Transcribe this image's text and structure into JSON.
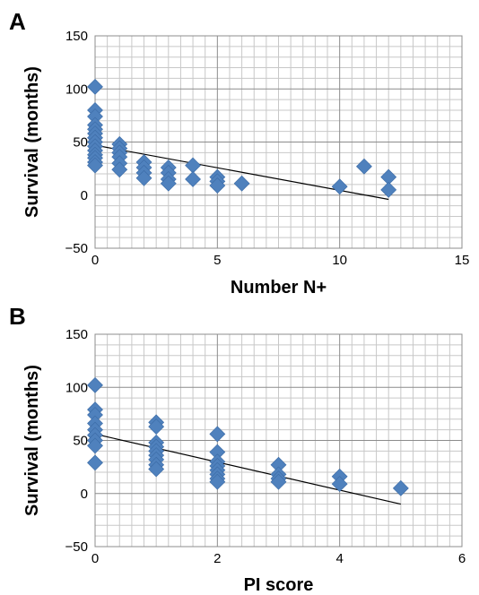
{
  "chart_data": [
    {
      "type": "scatter",
      "panel_label": "A",
      "xlabel": "Number N+",
      "ylabel": "Survival (months)",
      "xlim": [
        0,
        15
      ],
      "ylim": [
        -50,
        150
      ],
      "x_ticks": [
        0,
        5,
        10,
        15
      ],
      "y_ticks": [
        -50,
        0,
        50,
        100,
        150
      ],
      "x_minor_step": 0.5,
      "y_minor_step": 10,
      "grid": true,
      "legend": "none",
      "marker": "diamond",
      "marker_color": "#4f81bd",
      "points": [
        {
          "x": 0,
          "y": 102
        },
        {
          "x": 0,
          "y": 80
        },
        {
          "x": 0,
          "y": 74
        },
        {
          "x": 0,
          "y": 66
        },
        {
          "x": 0,
          "y": 62
        },
        {
          "x": 0,
          "y": 58
        },
        {
          "x": 0,
          "y": 54
        },
        {
          "x": 0,
          "y": 50
        },
        {
          "x": 0,
          "y": 46
        },
        {
          "x": 0,
          "y": 42
        },
        {
          "x": 0,
          "y": 38
        },
        {
          "x": 0,
          "y": 35
        },
        {
          "x": 0,
          "y": 31
        },
        {
          "x": 0,
          "y": 28
        },
        {
          "x": 1,
          "y": 48
        },
        {
          "x": 1,
          "y": 44
        },
        {
          "x": 1,
          "y": 40
        },
        {
          "x": 1,
          "y": 36
        },
        {
          "x": 1,
          "y": 30
        },
        {
          "x": 1,
          "y": 24
        },
        {
          "x": 2,
          "y": 31
        },
        {
          "x": 2,
          "y": 26
        },
        {
          "x": 2,
          "y": 21
        },
        {
          "x": 2,
          "y": 16
        },
        {
          "x": 3,
          "y": 26
        },
        {
          "x": 3,
          "y": 21
        },
        {
          "x": 3,
          "y": 15
        },
        {
          "x": 3,
          "y": 11
        },
        {
          "x": 4,
          "y": 28
        },
        {
          "x": 4,
          "y": 15
        },
        {
          "x": 5,
          "y": 17
        },
        {
          "x": 5,
          "y": 13
        },
        {
          "x": 5,
          "y": 9
        },
        {
          "x": 6,
          "y": 11
        },
        {
          "x": 10,
          "y": 8
        },
        {
          "x": 11,
          "y": 27
        },
        {
          "x": 12,
          "y": 17
        },
        {
          "x": 12,
          "y": 5
        }
      ],
      "trendline": {
        "x": [
          0,
          12
        ],
        "y": [
          47,
          -4
        ]
      }
    },
    {
      "type": "scatter",
      "panel_label": "B",
      "xlabel": "PI score",
      "ylabel": "Survival (months)",
      "xlim": [
        0,
        6
      ],
      "ylim": [
        -50,
        150
      ],
      "x_ticks": [
        0,
        2,
        4,
        6
      ],
      "y_ticks": [
        -50,
        0,
        50,
        100,
        150
      ],
      "x_minor_step": 0.2,
      "y_minor_step": 10,
      "grid": true,
      "legend": "none",
      "marker": "diamond",
      "marker_color": "#4f81bd",
      "points": [
        {
          "x": 0,
          "y": 102
        },
        {
          "x": 0,
          "y": 79
        },
        {
          "x": 0,
          "y": 74
        },
        {
          "x": 0,
          "y": 66
        },
        {
          "x": 0,
          "y": 60
        },
        {
          "x": 0,
          "y": 55
        },
        {
          "x": 0,
          "y": 50
        },
        {
          "x": 0,
          "y": 45
        },
        {
          "x": 0,
          "y": 29
        },
        {
          "x": 1,
          "y": 67
        },
        {
          "x": 1,
          "y": 63
        },
        {
          "x": 1,
          "y": 48
        },
        {
          "x": 1,
          "y": 44
        },
        {
          "x": 1,
          "y": 40
        },
        {
          "x": 1,
          "y": 36
        },
        {
          "x": 1,
          "y": 32
        },
        {
          "x": 1,
          "y": 27
        },
        {
          "x": 1,
          "y": 23
        },
        {
          "x": 2,
          "y": 56
        },
        {
          "x": 2,
          "y": 39
        },
        {
          "x": 2,
          "y": 30
        },
        {
          "x": 2,
          "y": 26
        },
        {
          "x": 2,
          "y": 22
        },
        {
          "x": 2,
          "y": 18
        },
        {
          "x": 2,
          "y": 14
        },
        {
          "x": 2,
          "y": 11
        },
        {
          "x": 3,
          "y": 27
        },
        {
          "x": 3,
          "y": 18
        },
        {
          "x": 3,
          "y": 14
        },
        {
          "x": 3,
          "y": 11
        },
        {
          "x": 4,
          "y": 16
        },
        {
          "x": 4,
          "y": 9
        },
        {
          "x": 5,
          "y": 5
        }
      ],
      "trendline": {
        "x": [
          0,
          5
        ],
        "y": [
          56,
          -10
        ]
      }
    }
  ]
}
